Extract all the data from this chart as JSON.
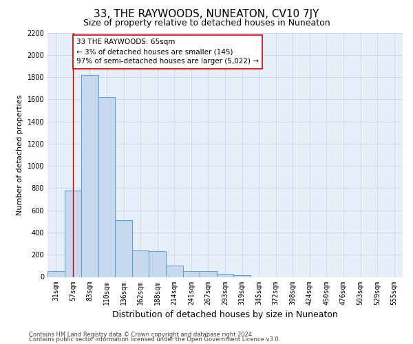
{
  "title": "33, THE RAYWOODS, NUNEATON, CV10 7JY",
  "subtitle": "Size of property relative to detached houses in Nuneaton",
  "xlabel": "Distribution of detached houses by size in Nuneaton",
  "ylabel": "Number of detached properties",
  "categories": [
    "31sqm",
    "57sqm",
    "83sqm",
    "110sqm",
    "136sqm",
    "162sqm",
    "188sqm",
    "214sqm",
    "241sqm",
    "267sqm",
    "293sqm",
    "319sqm",
    "345sqm",
    "372sqm",
    "398sqm",
    "424sqm",
    "450sqm",
    "476sqm",
    "503sqm",
    "529sqm",
    "555sqm"
  ],
  "values": [
    50,
    780,
    1820,
    1620,
    510,
    240,
    230,
    100,
    50,
    50,
    30,
    15,
    0,
    0,
    0,
    0,
    0,
    0,
    0,
    0,
    0
  ],
  "bar_color": "#c5d8ee",
  "bar_edge_color": "#5b9bd5",
  "vline_x": 1,
  "vline_color": "#cc0000",
  "annotation_text": "33 THE RAYWOODS: 65sqm\n← 3% of detached houses are smaller (145)\n97% of semi-detached houses are larger (5,022) →",
  "annotation_box_color": "#ffffff",
  "annotation_box_edge_color": "#cc0000",
  "ylim": [
    0,
    2200
  ],
  "yticks": [
    0,
    200,
    400,
    600,
    800,
    1000,
    1200,
    1400,
    1600,
    1800,
    2000,
    2200
  ],
  "grid_color": "#c8d4e8",
  "background_color": "#e8eef8",
  "footer_line1": "Contains HM Land Registry data © Crown copyright and database right 2024.",
  "footer_line2": "Contains public sector information licensed under the Open Government Licence v3.0.",
  "title_fontsize": 11,
  "subtitle_fontsize": 9,
  "ylabel_fontsize": 8,
  "xlabel_fontsize": 9,
  "tick_fontsize": 7,
  "ytick_fontsize": 7,
  "footer_fontsize": 6
}
